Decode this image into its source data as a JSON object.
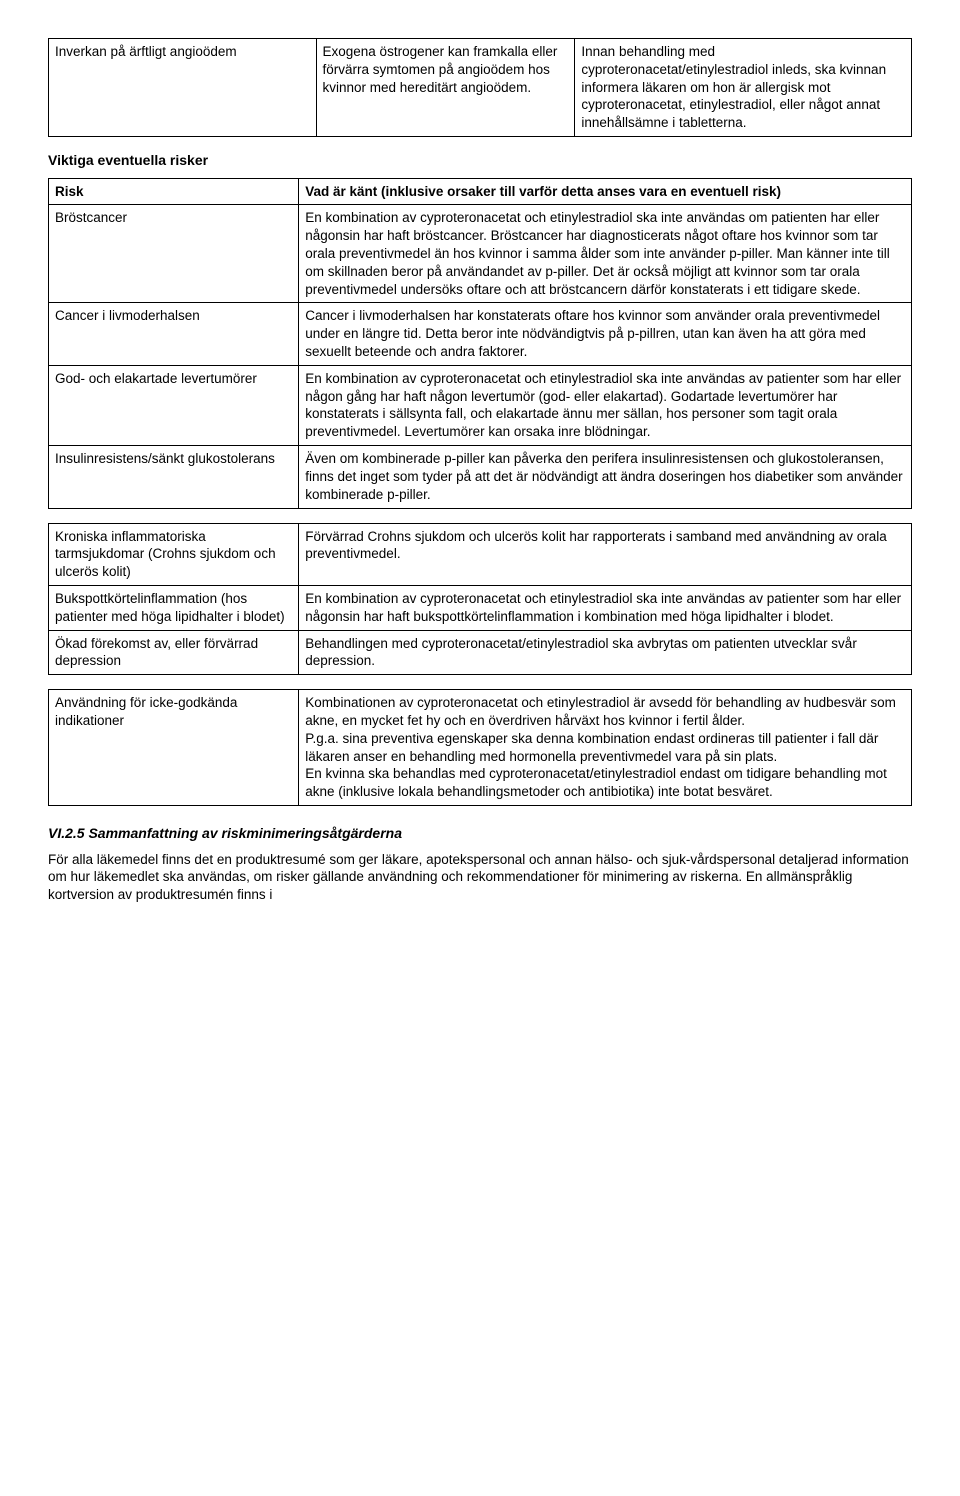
{
  "table1": {
    "row": {
      "c1": "Inverkan på ärftligt angioödem",
      "c2": "Exogena östrogener kan framkalla eller förvärra symtomen på angioödem hos kvinnor med hereditärt angioödem.",
      "c3": "Innan behandling med cyproteronacetat/etinylestradiol inleds, ska kvinnan informera läkaren om hon är allergisk mot cyproteronacetat, etinylestradiol, eller något annat innehållsämne i tabletterna."
    }
  },
  "heading_risks": "Viktiga eventuella risker",
  "table2": {
    "header": {
      "c1": "Risk",
      "c2": "Vad är känt (inklusive orsaker till varför detta anses vara en eventuell risk)"
    },
    "r1": {
      "c1": "Bröstcancer",
      "c2": "En kombination av cyproteronacetat och etinylestradiol ska inte användas om patienten har eller någonsin har haft bröstcancer. Bröstcancer har diagnosticerats något oftare hos kvinnor som tar orala preventivmedel än hos kvinnor i samma ålder som inte använder p-piller. Man känner inte till om skillnaden beror på användandet av p-piller. Det är också möjligt att kvinnor som tar orala preventivmedel undersöks oftare och att bröstcancern därför konstaterats i ett tidigare skede."
    },
    "r2": {
      "c1": "Cancer i livmoderhalsen",
      "c2": "Cancer i livmoderhalsen har konstaterats oftare hos kvinnor som använder orala preventivmedel under en längre tid. Detta beror inte nödvändigtvis på p-pillren, utan kan även ha att göra med sexuellt beteende och andra faktorer."
    },
    "r3": {
      "c1": "God- och elakartade levertumörer",
      "c2": "En kombination av cyproteronacetat och etinylestradiol ska inte användas av patienter som har eller någon gång har haft någon levertumör (god- eller elakartad). Godartade levertumörer har konstaterats i sällsynta fall, och elakartade ännu mer sällan, hos personer som tagit orala preventivmedel. Levertumörer kan orsaka inre blödningar."
    },
    "r4": {
      "c1": "Insulinresistens/sänkt glukostolerans",
      "c2": "Även om kombinerade p-piller kan påverka den perifera insulinresistensen och glukostoleransen, finns det inget som tyder på att det är nödvändigt att ändra doseringen hos diabetiker som använder kombinerade p-piller."
    }
  },
  "table3": {
    "r1": {
      "c1": "Kroniska inflammatoriska tarmsjukdomar (Crohns sjukdom och ulcerös kolit)",
      "c2": "Förvärrad Crohns sjukdom och ulcerös kolit har rapporterats i samband med användning av orala preventivmedel."
    },
    "r2": {
      "c1": "Bukspottkörtelinflammation (hos patienter med höga lipidhalter i blodet)",
      "c2": "En kombination av cyproteronacetat och etinylestradiol ska inte användas av patienter som har eller någonsin har haft bukspottkörtelinflammation i kombination med höga lipidhalter i blodet."
    },
    "r3": {
      "c1": "Ökad förekomst av, eller förvärrad depression",
      "c2": "Behandlingen med cyproteronacetat/etinylestradiol ska avbrytas om patienten utvecklar svår depression."
    }
  },
  "table4": {
    "r1": {
      "c1": "Användning för icke-godkända indikationer",
      "p1": "Kombinationen av cyproteronacetat och etinylestradiol är avsedd för behandling av hudbesvär som akne, en mycket fet hy och en överdriven hårväxt hos kvinnor i fertil ålder.",
      "p2": "P.g.a. sina preventiva egenskaper ska denna kombination endast ordineras till patienter i fall där läkaren anser en behandling med hormonella preventivmedel vara på sin plats.",
      "p3": "En kvinna ska behandlas med cyproteronacetat/etinylestradiol endast om tidigare behandling mot akne (inklusive lokala behandlingsmetoder och antibiotika) inte botat besväret."
    }
  },
  "section2": {
    "heading": "VI.2.5 Sammanfattning av riskminimeringsåtgärderna",
    "para": "För alla läkemedel finns det en produktresumé som ger läkare, apotekspersonal och annan hälso- och sjuk-vårdspersonal detaljerad information om hur läkemedlet ska användas, om risker gällande användning och rekommendationer för minimering av riskerna. En allmänspråklig kortversion av produktresumén finns i"
  }
}
